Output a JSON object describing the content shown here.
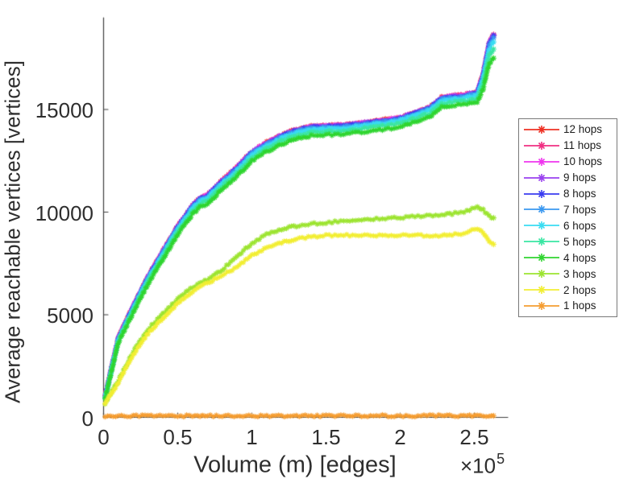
{
  "chart_data": {
    "type": "line",
    "title": "",
    "xlabel": "Volume (m) [edges]",
    "ylabel": "Average reachable vertices [vertices]",
    "x_multiplier_base": "×10",
    "x_multiplier_exp": "5",
    "x_unit_scale": 100000,
    "xlim": [
      0,
      2.73
    ],
    "ylim": [
      0,
      19450
    ],
    "grid": false,
    "legend_position": "outside-right",
    "marker": "asterisk",
    "axis_color": "#3f3f3f",
    "legend_border_color": "#787878",
    "xticks": [
      {
        "label": "0",
        "value": 0
      },
      {
        "label": "0.5",
        "value": 0.5
      },
      {
        "label": "1",
        "value": 1
      },
      {
        "label": "1.5",
        "value": 1.5
      },
      {
        "label": "2",
        "value": 2
      },
      {
        "label": "2.5",
        "value": 2.5
      }
    ],
    "yticks": [
      {
        "label": "0",
        "value": 0
      },
      {
        "label": "5000",
        "value": 5000
      },
      {
        "label": "10000",
        "value": 10000
      },
      {
        "label": "15000",
        "value": 15000
      }
    ],
    "x": [
      0.01,
      0.1,
      0.2,
      0.3,
      0.4,
      0.5,
      0.6,
      0.65,
      0.7,
      0.8,
      0.9,
      1.0,
      1.1,
      1.2,
      1.3,
      1.4,
      1.5,
      1.6,
      1.7,
      1.8,
      1.9,
      2.0,
      2.1,
      2.2,
      2.28,
      2.35,
      2.45,
      2.52,
      2.56,
      2.6,
      2.63
    ],
    "series": [
      {
        "name": "12 hops",
        "color": "#ee3023",
        "values": [
          1025,
          3895,
          5425,
          6865,
          8095,
          9315,
          10325,
          10680,
          10830,
          11535,
          12190,
          12945,
          13400,
          13755,
          14025,
          14175,
          14215,
          14245,
          14315,
          14405,
          14505,
          14610,
          14860,
          15115,
          15595,
          15655,
          15755,
          15855,
          16745,
          18245,
          18645
        ]
      },
      {
        "name": "11 hops",
        "color": "#f03083",
        "values": [
          1015,
          3885,
          5415,
          6855,
          8085,
          9305,
          10315,
          10670,
          10820,
          11525,
          12180,
          12935,
          13390,
          13745,
          14015,
          14165,
          14205,
          14235,
          14305,
          14395,
          14495,
          14600,
          14850,
          15105,
          15585,
          15645,
          15745,
          15845,
          16735,
          18235,
          18635
        ]
      },
      {
        "name": "10 hops",
        "color": "#ef36ee",
        "values": [
          1005,
          3875,
          5405,
          6845,
          8075,
          9295,
          10305,
          10660,
          10810,
          11515,
          12170,
          12925,
          13380,
          13735,
          14005,
          14155,
          14195,
          14225,
          14295,
          14385,
          14485,
          14590,
          14840,
          15095,
          15575,
          15635,
          15735,
          15835,
          16725,
          18225,
          18625
        ]
      },
      {
        "name": "9 hops",
        "color": "#9a41ef",
        "values": [
          995,
          3865,
          5395,
          6835,
          8065,
          9285,
          10295,
          10650,
          10800,
          11505,
          12160,
          12915,
          13370,
          13725,
          13995,
          14145,
          14185,
          14215,
          14285,
          14375,
          14475,
          14580,
          14830,
          15085,
          15565,
          15625,
          15725,
          15825,
          16715,
          18215,
          18615
        ]
      },
      {
        "name": "8 hops",
        "color": "#3a3cf0",
        "values": [
          980,
          3850,
          5380,
          6820,
          8050,
          9270,
          10280,
          10635,
          10785,
          11490,
          12145,
          12900,
          13355,
          13710,
          13980,
          14130,
          14170,
          14200,
          14270,
          14360,
          14460,
          14565,
          14815,
          15070,
          15550,
          15610,
          15710,
          15810,
          16700,
          18200,
          18600
        ]
      },
      {
        "name": "7 hops",
        "color": "#3a98f0",
        "values": [
          972,
          3830,
          5352,
          6788,
          8015,
          9233,
          10242,
          10596,
          10746,
          11451,
          12105,
          12860,
          13314,
          13669,
          13939,
          14089,
          14129,
          14159,
          14229,
          14319,
          14419,
          14523,
          14773,
          15028,
          15507,
          15576,
          15665,
          15762,
          16630,
          18100,
          18490
        ]
      },
      {
        "name": "6 hops",
        "color": "#39dcf2",
        "values": [
          958,
          3794,
          5302,
          6730,
          7952,
          9166,
          10174,
          10527,
          10677,
          11381,
          12034,
          12788,
          13242,
          13595,
          13865,
          14015,
          14055,
          14085,
          14155,
          14245,
          14345,
          14449,
          14699,
          14952,
          15430,
          15497,
          15584,
          15676,
          16504,
          17920,
          18292
        ]
      },
      {
        "name": "5 hops",
        "color": "#3ae6a3",
        "values": [
          932,
          3730,
          5212,
          6628,
          7840,
          9048,
          10052,
          10404,
          10554,
          11256,
          11908,
          12660,
          13112,
          13464,
          13734,
          13884,
          13924,
          13954,
          14024,
          14114,
          14214,
          14316,
          14566,
          14818,
          15292,
          15356,
          15440,
          15522,
          16280,
          17600,
          17940
        ]
      },
      {
        "name": "4 hops",
        "color": "#2fd52f",
        "values": [
          900,
          3650,
          5100,
          6500,
          7700,
          8900,
          9900,
          10250,
          10400,
          11100,
          11750,
          12500,
          12950,
          13300,
          13570,
          13720,
          13760,
          13790,
          13860,
          13950,
          14050,
          14150,
          14400,
          14650,
          15120,
          15180,
          15260,
          15330,
          16000,
          17200,
          17500
        ]
      },
      {
        "name": "3 hops",
        "color": "#9ce430",
        "values": [
          700,
          1800,
          3200,
          4300,
          5050,
          5750,
          6350,
          6550,
          6700,
          7200,
          7850,
          8480,
          8950,
          9180,
          9330,
          9420,
          9490,
          9560,
          9610,
          9650,
          9690,
          9730,
          9800,
          9840,
          9880,
          9920,
          10050,
          10300,
          10100,
          9800,
          9720
        ]
      },
      {
        "name": "2 hops",
        "color": "#f2ee32",
        "values": [
          650,
          1700,
          3050,
          4100,
          4850,
          5550,
          6150,
          6380,
          6550,
          6900,
          7350,
          7880,
          8250,
          8520,
          8700,
          8800,
          8860,
          8870,
          8870,
          8870,
          8870,
          8870,
          8880,
          8840,
          8850,
          8880,
          9000,
          9220,
          9000,
          8600,
          8430
        ]
      },
      {
        "name": "1 hops",
        "color": "#f59d31",
        "values": [
          60,
          65,
          68,
          70,
          72,
          73,
          74,
          74,
          75,
          75,
          76,
          76,
          77,
          77,
          77,
          78,
          78,
          78,
          78,
          79,
          79,
          79,
          79,
          80,
          80,
          80,
          80,
          80,
          80,
          80,
          80
        ]
      }
    ]
  }
}
